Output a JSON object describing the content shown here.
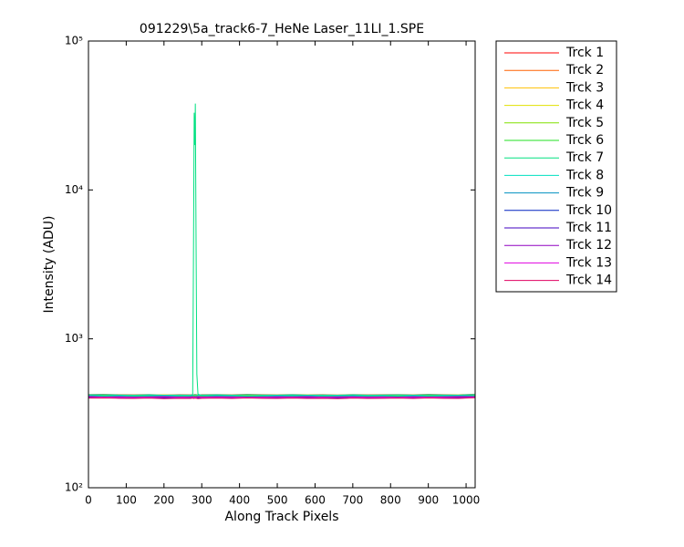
{
  "chart_data": {
    "type": "line",
    "title": "091229\\5a_track6-7_HeNe Laser_11LI_1.SPE",
    "x_label": "Along Track Pixels",
    "y_label": "Intensity (ADU)",
    "y_scale": "log",
    "xlim": [
      0,
      1024
    ],
    "xticks": [
      0,
      100,
      200,
      300,
      400,
      500,
      600,
      700,
      800,
      900,
      1000
    ],
    "ylim": [
      100,
      100000
    ],
    "yticks": [
      {
        "value": 100,
        "label": "10²"
      },
      {
        "value": 1000,
        "label": "10³"
      },
      {
        "value": 10000,
        "label": "10⁴"
      },
      {
        "value": 100000,
        "label": "10⁵"
      }
    ],
    "legend": "outside-right",
    "x": [
      0,
      40,
      80,
      120,
      160,
      200,
      240,
      270,
      276,
      278,
      280,
      282,
      283,
      285,
      287,
      290,
      300,
      340,
      380,
      420,
      460,
      500,
      540,
      580,
      620,
      660,
      700,
      740,
      780,
      820,
      860,
      900,
      940,
      980,
      1023
    ],
    "series": [
      {
        "name": "Trck 1",
        "color": "#ff0000",
        "values": [
          408,
          404,
          406,
          403,
          405,
          407,
          404,
          405,
          406,
          404,
          405,
          403,
          406,
          404,
          405,
          407,
          404,
          406,
          405,
          403,
          404,
          406,
          405,
          407,
          404,
          405,
          406,
          404,
          405,
          403,
          406,
          404,
          405,
          407,
          406
        ]
      },
      {
        "name": "Trck 2",
        "color": "#ff6000",
        "values": [
          423,
          424,
          422,
          421,
          423,
          420,
          422,
          421,
          423,
          422,
          421,
          424,
          422,
          423,
          421,
          420,
          422,
          423,
          421,
          424,
          422,
          421,
          423,
          421,
          422,
          420,
          423,
          421,
          422,
          423,
          421,
          424,
          422,
          421,
          425
        ]
      },
      {
        "name": "Trck 3",
        "color": "#ffc000",
        "values": [
          422,
          418,
          420,
          417,
          419,
          421,
          418,
          419,
          420,
          418,
          419,
          417,
          420,
          418,
          419,
          421,
          418,
          420,
          419,
          417,
          418,
          420,
          419,
          421,
          418,
          419,
          420,
          418,
          419,
          417,
          420,
          418,
          419,
          421,
          420
        ]
      },
      {
        "name": "Trck 4",
        "color": "#e0e000",
        "values": [
          417,
          418,
          416,
          415,
          417,
          414,
          416,
          415,
          417,
          416,
          415,
          418,
          416,
          417,
          415,
          414,
          416,
          417,
          415,
          418,
          416,
          415,
          417,
          415,
          416,
          414,
          417,
          415,
          416,
          417,
          415,
          418,
          416,
          415,
          419
        ]
      },
      {
        "name": "Trck 5",
        "color": "#80e000",
        "values": [
          416,
          412,
          414,
          411,
          413,
          415,
          412,
          413,
          414,
          412,
          413,
          411,
          414,
          412,
          413,
          415,
          412,
          414,
          413,
          411,
          412,
          414,
          413,
          415,
          412,
          413,
          414,
          412,
          413,
          411,
          414,
          412,
          413,
          415,
          414
        ]
      },
      {
        "name": "Trck 6",
        "color": "#20e020",
        "values": [
          412,
          413,
          411,
          410,
          412,
          409,
          411,
          410,
          412,
          411,
          410,
          413,
          411,
          412,
          410,
          409,
          411,
          412,
          410,
          413,
          411,
          410,
          412,
          410,
          411,
          409,
          412,
          410,
          411,
          412,
          410,
          413,
          411,
          410,
          414
        ]
      },
      {
        "name": "Trck 7",
        "color": "#00e080",
        "values": [
          418,
          414,
          416,
          413,
          415,
          417,
          414,
          415,
          418,
          3300,
          33000,
          20000,
          38000,
          4200,
          580,
          425,
          417,
          416,
          415,
          413,
          414,
          416,
          415,
          417,
          414,
          415,
          416,
          414,
          415,
          413,
          416,
          414,
          415,
          417,
          416
        ]
      },
      {
        "name": "Trck 8",
        "color": "#00e0c0",
        "values": [
          421,
          422,
          420,
          419,
          421,
          418,
          420,
          419,
          421,
          420,
          419,
          422,
          420,
          421,
          419,
          418,
          420,
          421,
          419,
          422,
          420,
          419,
          421,
          419,
          420,
          418,
          421,
          419,
          420,
          421,
          419,
          422,
          420,
          419,
          423
        ]
      },
      {
        "name": "Trck 9",
        "color": "#0090c0",
        "values": [
          412,
          408,
          410,
          407,
          409,
          411,
          408,
          409,
          410,
          408,
          409,
          407,
          410,
          408,
          409,
          411,
          408,
          410,
          409,
          407,
          408,
          410,
          409,
          411,
          408,
          409,
          410,
          408,
          409,
          407,
          410,
          408,
          409,
          411,
          410
        ]
      },
      {
        "name": "Trck 10",
        "color": "#0020c0",
        "values": [
          404,
          405,
          403,
          402,
          404,
          401,
          403,
          402,
          404,
          403,
          402,
          405,
          403,
          404,
          402,
          401,
          403,
          404,
          402,
          405,
          403,
          402,
          404,
          402,
          403,
          401,
          404,
          402,
          403,
          404,
          402,
          405,
          403,
          402,
          406
        ]
      },
      {
        "name": "Trck 11",
        "color": "#4000c0",
        "values": [
          409,
          405,
          407,
          404,
          406,
          408,
          405,
          406,
          407,
          405,
          406,
          404,
          407,
          405,
          406,
          408,
          405,
          407,
          406,
          404,
          405,
          407,
          406,
          408,
          405,
          406,
          407,
          405,
          406,
          404,
          407,
          405,
          406,
          408,
          407
        ]
      },
      {
        "name": "Trck 12",
        "color": "#9000c0",
        "values": [
          402,
          403,
          401,
          400,
          402,
          399,
          401,
          400,
          402,
          401,
          400,
          403,
          401,
          402,
          400,
          399,
          401,
          402,
          400,
          403,
          401,
          400,
          402,
          400,
          401,
          399,
          402,
          400,
          401,
          402,
          400,
          403,
          401,
          400,
          404
        ]
      },
      {
        "name": "Trck 13",
        "color": "#e000e0",
        "values": [
          410,
          406,
          408,
          405,
          407,
          409,
          406,
          407,
          408,
          406,
          407,
          405,
          408,
          406,
          407,
          409,
          406,
          408,
          407,
          405,
          406,
          408,
          407,
          409,
          406,
          407,
          408,
          406,
          407,
          405,
          408,
          406,
          407,
          409,
          408
        ]
      },
      {
        "name": "Trck 14",
        "color": "#e00060",
        "values": [
          400,
          401,
          399,
          398,
          400,
          397,
          399,
          398,
          400,
          399,
          398,
          401,
          399,
          400,
          398,
          397,
          399,
          400,
          398,
          401,
          399,
          398,
          400,
          398,
          399,
          397,
          400,
          398,
          399,
          400,
          398,
          401,
          399,
          398,
          402
        ]
      }
    ]
  }
}
